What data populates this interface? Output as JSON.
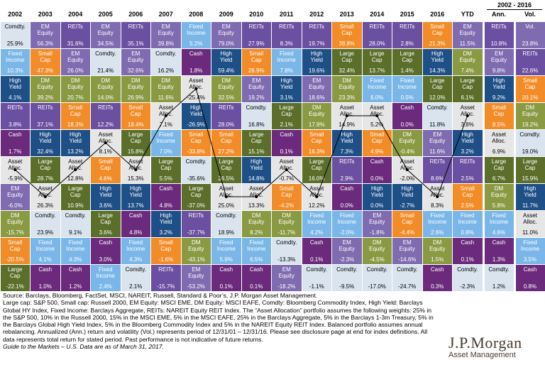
{
  "header": {
    "years": [
      "2002",
      "2003",
      "2004",
      "2005",
      "2006",
      "2007",
      "2008",
      "2009",
      "2010",
      "2011",
      "2012",
      "2013",
      "2014",
      "2015",
      "2016",
      "YTD"
    ],
    "range_label": "2002 - 2016",
    "ann_label": "Ann.",
    "vol_label": "Vol."
  },
  "colors": {
    "Comdty.": "#d9e4ef",
    "EM Equity": "#7e6bb0",
    "REITs": "#6b4fa0",
    "Fixed Income": "#7ab7e8",
    "Small Cap": "#f28c28",
    "High Yield": "#1e4f86",
    "DM Equity": "#8a9a43",
    "Large Cap": "#5b6f2b",
    "Cash": "#6b2a7c",
    "Asset Alloc.": "#e6e6e6"
  },
  "chart_data": {
    "type": "table",
    "columns": [
      "2002",
      "2003",
      "2004",
      "2005",
      "2006",
      "2007",
      "2008",
      "2009",
      "2010",
      "2011",
      "2012",
      "2013",
      "2014",
      "2015",
      "2016",
      "YTD",
      "Ann.",
      "Vol."
    ],
    "rows": [
      [
        [
          "Comdty.",
          "25.9%"
        ],
        [
          "EM Equity",
          "56.3%"
        ],
        [
          "REITs",
          "31.6%"
        ],
        [
          "EM Equity",
          "34.5%"
        ],
        [
          "REITs",
          "35.1%"
        ],
        [
          "EM Equity",
          "39.8%"
        ],
        [
          "Fixed Income",
          "5.2%"
        ],
        [
          "EM Equity",
          "79.0%"
        ],
        [
          "REITs",
          "27.9%"
        ],
        [
          "REITs",
          "8.3%"
        ],
        [
          "REITs",
          "19.7%"
        ],
        [
          "Small Cap",
          "38.8%"
        ],
        [
          "REITs",
          "28.0%"
        ],
        [
          "REITs",
          "2.8%"
        ],
        [
          "Small Cap",
          "21.3%"
        ],
        [
          "EM Equity",
          "11.5%"
        ],
        [
          "REITs",
          "10.8%"
        ],
        [
          "Vol.",
          "23.8%"
        ]
      ],
      [
        [
          "Fixed Income",
          "10.3%"
        ],
        [
          "Small Cap",
          "47.3%"
        ],
        [
          "EM Equity",
          "26.0%"
        ],
        [
          "Comdty.",
          "21.4%"
        ],
        [
          "EM Equity",
          "32.6%"
        ],
        [
          "Comdty.",
          "16.2%"
        ],
        [
          "Cash",
          "1.8%"
        ],
        [
          "High Yield",
          "59.4%"
        ],
        [
          "Small Cap",
          "26.9%"
        ],
        [
          "Fixed Income",
          "7.8%"
        ],
        [
          "High Yield",
          "19.6%"
        ],
        [
          "Large Cap",
          "32.4%"
        ],
        [
          "Large Cap",
          "13.7%"
        ],
        [
          "Large Cap",
          "1.4%"
        ],
        [
          "High Yield",
          "14.3%"
        ],
        [
          "DM Equity",
          "7.4%"
        ],
        [
          "EM Equity",
          "9.8%"
        ],
        [
          "REITs",
          "22.6%"
        ]
      ],
      [
        [
          "High Yield",
          "4.1%"
        ],
        [
          "DM Equity",
          "39.2%"
        ],
        [
          "DM Equity",
          "20.7%"
        ],
        [
          "DM Equity",
          "14.0%"
        ],
        [
          "DM Equity",
          "26.9%"
        ],
        [
          "DM Equity",
          "11.6%"
        ],
        [
          "Asset Alloc.",
          "-25.4%"
        ],
        [
          "DM Equity",
          "32.5%"
        ],
        [
          "EM Equity",
          "19.2%"
        ],
        [
          "High Yield",
          "3.1%"
        ],
        [
          "EM Equity",
          "18.6%"
        ],
        [
          "DM Equity",
          "23.3%"
        ],
        [
          "Fixed Income",
          "6.0%"
        ],
        [
          "Fixed Income",
          "0.5%"
        ],
        [
          "Large Cap",
          "12.0%"
        ],
        [
          "Large Cap",
          "6.1%"
        ],
        [
          "High Yield",
          "9.2%"
        ],
        [
          "Small Cap",
          "20.1%"
        ]
      ],
      [
        [
          "REITs",
          "3.8%"
        ],
        [
          "REITs",
          "37.1%"
        ],
        [
          "Small Cap",
          "18.3%"
        ],
        [
          "REITs",
          "12.2%"
        ],
        [
          "Small Cap",
          "18.4%"
        ],
        [
          "Asset Alloc.",
          "7.1%"
        ],
        [
          "High Yield",
          "-26.9%"
        ],
        [
          "REITs",
          "28.0%"
        ],
        [
          "Comdty.",
          "16.8%"
        ],
        [
          "Large Cap",
          "2.1%"
        ],
        [
          "DM Equity",
          "17.9%"
        ],
        [
          "Asset Alloc.",
          "14.9%"
        ],
        [
          "Asset Alloc.",
          "5.2%"
        ],
        [
          "Cash",
          "0.0%"
        ],
        [
          "Comdty.",
          "11.8%"
        ],
        [
          "Asset Alloc.",
          "3.8%"
        ],
        [
          "Small Cap",
          "8.5%"
        ],
        [
          "DM Equity",
          "19.2%"
        ]
      ],
      [
        [
          "Cash",
          "1.7%"
        ],
        [
          "High Yield",
          "32.4%"
        ],
        [
          "High Yield",
          "13.2%"
        ],
        [
          "Asset Alloc.",
          "8.1%"
        ],
        [
          "Large Cap",
          "15.8%"
        ],
        [
          "Fixed Income",
          "7.0%"
        ],
        [
          "Small Cap",
          "-33.8%"
        ],
        [
          "Small Cap",
          "27.2%"
        ],
        [
          "Large Cap",
          "15.1%"
        ],
        [
          "Cash",
          "0.1%"
        ],
        [
          "Small Cap",
          "16.3%"
        ],
        [
          "High Yield",
          "7.3%"
        ],
        [
          "Small Cap",
          "4.9%"
        ],
        [
          "DM Equity",
          "-0.4%"
        ],
        [
          "EM Equity",
          "11.6%"
        ],
        [
          "High Yield",
          "3.2%"
        ],
        [
          "Asset Alloc.",
          "6.9%"
        ],
        [
          "Comdty.",
          "19.0%"
        ]
      ],
      [
        [
          "Asset Alloc.",
          "-5.9%"
        ],
        [
          "Large Cap",
          "28.7%"
        ],
        [
          "Asset Alloc.",
          "12.8%"
        ],
        [
          "Small Cap",
          "4.6%"
        ],
        [
          "Asset Alloc.",
          "15.3%"
        ],
        [
          "Large Cap",
          "5.5%"
        ],
        [
          "Comdty.",
          "-35.6%"
        ],
        [
          "Large Cap",
          "26.5%"
        ],
        [
          "High Yield",
          "14.8%"
        ],
        [
          "Asset Alloc.",
          "-0.7%"
        ],
        [
          "Large Cap",
          "16.0%"
        ],
        [
          "REITs",
          "2.9%"
        ],
        [
          "Cash",
          "0.0%"
        ],
        [
          "Asset Alloc.",
          "-2.0%"
        ],
        [
          "REITs",
          "8.6%"
        ],
        [
          "REITs",
          "2.5%"
        ],
        [
          "Large Cap",
          "6.7%"
        ],
        [
          "Large Cap",
          "15.9%"
        ]
      ],
      [
        [
          "EM Equity",
          "-6.0%"
        ],
        [
          "Asset Alloc.",
          "26.3%"
        ],
        [
          "Large Cap",
          "10.9%"
        ],
        [
          "High Yield",
          "3.6%"
        ],
        [
          "High Yield",
          "13.7%"
        ],
        [
          "Cash",
          "4.8%"
        ],
        [
          "Large Cap",
          "-37.0%"
        ],
        [
          "Asset Alloc.",
          "25.0%"
        ],
        [
          "Asset Alloc.",
          "13.3%"
        ],
        [
          "Small Cap",
          "-4.2%"
        ],
        [
          "Asset Alloc.",
          "12.2%"
        ],
        [
          "Cash",
          "0.0%"
        ],
        [
          "High Yield",
          "0.0%"
        ],
        [
          "High Yield",
          "-2.7%"
        ],
        [
          "Asset Alloc.",
          "8.3%"
        ],
        [
          "Small Cap",
          "2.5%"
        ],
        [
          "DM Equity",
          "5.8%"
        ],
        [
          "High Yield",
          "11.7%"
        ]
      ],
      [
        [
          "DM Equity",
          "-15.7%"
        ],
        [
          "Comdty.",
          "23.9%"
        ],
        [
          "Comdty.",
          "9.1%"
        ],
        [
          "Large Cap",
          "3.6%"
        ],
        [
          "Cash",
          "4.8%"
        ],
        [
          "High Yield",
          "3.2%"
        ],
        [
          "REITs",
          "-37.7%"
        ],
        [
          "Comdty.",
          "18.9%"
        ],
        [
          "DM Equity",
          "8.2%"
        ],
        [
          "DM Equity",
          "-11.7%"
        ],
        [
          "Fixed Income",
          "4.2%"
        ],
        [
          "Fixed Income",
          "-2.0%"
        ],
        [
          "EM Equity",
          "-1.8%"
        ],
        [
          "Small Cap",
          "-4.4%"
        ],
        [
          "Fixed Income",
          "2.6%"
        ],
        [
          "Fixed Income",
          "0.8%"
        ],
        [
          "Fixed Income",
          "4.6%"
        ],
        [
          "Asset Alloc.",
          "11.0%"
        ]
      ],
      [
        [
          "Small Cap",
          "-20.5%"
        ],
        [
          "Fixed Income",
          "4.1%"
        ],
        [
          "Fixed Income",
          "4.3%"
        ],
        [
          "Cash",
          "3.0%"
        ],
        [
          "Fixed Income",
          "4.3%"
        ],
        [
          "Small Cap",
          "-1.6%"
        ],
        [
          "DM Equity",
          "-43.1%"
        ],
        [
          "Fixed Income",
          "5.9%"
        ],
        [
          "Fixed Income",
          "6.5%"
        ],
        [
          "Comdty.",
          "-13.3%"
        ],
        [
          "Cash",
          "0.1%"
        ],
        [
          "EM Equity",
          "-2.3%"
        ],
        [
          "DM Equity",
          "-4.5%"
        ],
        [
          "EM Equity",
          "-14.6%"
        ],
        [
          "DM Equity",
          "1.5%"
        ],
        [
          "Cash",
          "0.1%"
        ],
        [
          "Cash",
          "1.3%"
        ],
        [
          "Fixed Income",
          "3.5%"
        ]
      ],
      [
        [
          "Large Cap",
          "-22.1%"
        ],
        [
          "Cash",
          "1.0%"
        ],
        [
          "Cash",
          "1.2%"
        ],
        [
          "Fixed Income",
          "2.4%"
        ],
        [
          "Comdty.",
          "2.1%"
        ],
        [
          "REITs",
          "-15.7%"
        ],
        [
          "EM Equity",
          "-53.2%"
        ],
        [
          "Cash",
          "0.1%"
        ],
        [
          "Cash",
          "0.1%"
        ],
        [
          "EM Equity",
          "-18.2%"
        ],
        [
          "Comdty.",
          "-1.1%"
        ],
        [
          "Comdty.",
          "-9.5%"
        ],
        [
          "Comdty.",
          "-17.0%"
        ],
        [
          "Comdty.",
          "-24.7%"
        ],
        [
          "Cash",
          "0.3%"
        ],
        [
          "Comdty.",
          "-2.3%"
        ],
        [
          "Comdty.",
          "1.2%"
        ],
        [
          "Cash",
          "0.8%"
        ]
      ]
    ]
  },
  "footnotes": {
    "line1": "Source: Barclays, Bloomberg, FactSet, MSCI, NAREIT, Russell, Standard & Poor’s, J.P. Morgan Asset Management.",
    "line2": "Large cap: S&P 500, Small cap: Russell 2000, EM Equity: MSCI EME, DM Equity: MSCI EAFE, Comdty: Bloomberg Commodity Index, High Yield: Barclays Global HY Index, Fixed Income: Barclays Aggregate, REITs: NAREIT Equity REIT Index. The “Asset Allocation” portfolio assumes the following weights: 25% in the S&P 500, 10% in the Russell 2000, 15% in the MSCI EME, 5% in the MSCI EAFE, 25% in the Barclays Aggregate, 5% in the Barclays 1-3m Treasury, 5% in the Barclays Global High Yield Index, 5% in the Bloomberg Commodity Index and 5% in the NAREIT Equity REIT Index. Balanced portfolio assumes annual rebalancing. Annualized (Ann.) return and volatility (Vol.) represents period of 12/31/01 – 12/31/16. Please see disclosure page at end for index definitions. All data represents total return for stated period. Past performance is not indicative of future returns.",
    "line3": "Guide to the Markets – U.S. Data are as of March 31, 2017."
  },
  "logo": {
    "name": "J.P.Morgan",
    "sub": "Asset Management"
  }
}
